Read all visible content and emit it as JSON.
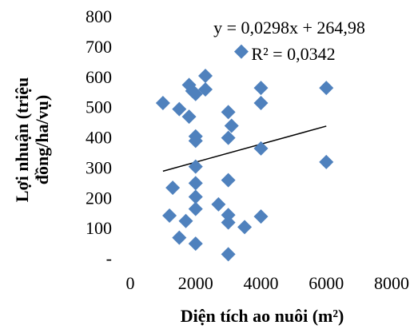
{
  "chart_data": {
    "type": "scatter",
    "x_label": "Diện tích ao nuôi (m²)",
    "y_label": [
      "Lợi nhuận (triệu",
      "đồng/ha/vụ)"
    ],
    "color": "#4f81bd",
    "x": [
      1000,
      1500,
      1800,
      1900,
      2000,
      2300,
      2300,
      1800,
      2000,
      2000,
      2000,
      2000,
      2000,
      2000,
      2000,
      1300,
      1200,
      1700,
      1500,
      2700,
      3000,
      3100,
      3000,
      3000,
      3000,
      3000,
      3000,
      3500,
      3400,
      4000,
      4000,
      4000,
      4000,
      6000,
      6000
    ],
    "values": [
      520,
      500,
      580,
      560,
      550,
      610,
      565,
      475,
      410,
      395,
      310,
      255,
      210,
      170,
      55,
      240,
      148,
      130,
      75,
      185,
      490,
      445,
      405,
      265,
      150,
      125,
      20,
      110,
      690,
      570,
      520,
      370,
      145,
      570,
      325
    ],
    "xlim": [
      0,
      8000
    ],
    "xticks": [
      0,
      2000,
      4000,
      6000,
      8000
    ],
    "ylim": [
      0,
      800
    ],
    "yticks": [
      {
        "value": 0,
        "label": "-"
      },
      100,
      200,
      300,
      400,
      500,
      600,
      700,
      800
    ],
    "trendline": {
      "equation": "y = 0,0298x + 264,98",
      "r_squared": "R² = 0,0342",
      "slope": 0.0298,
      "intercept": 264.98,
      "color": "#000000"
    }
  }
}
